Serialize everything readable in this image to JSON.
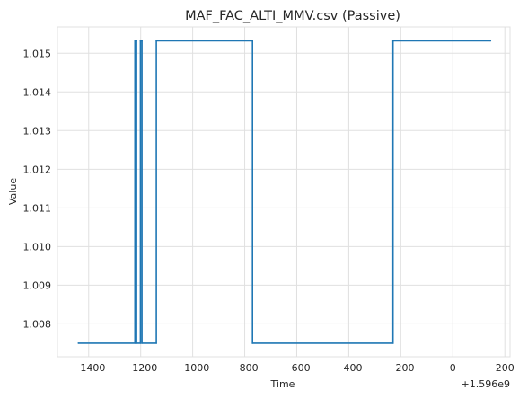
{
  "chart_data": {
    "type": "line",
    "title": "MAF_FAC_ALTI_MMV.csv (Passive)",
    "xlabel": "Time",
    "ylabel": "Value",
    "x_offset_label": "+1.596e9",
    "xlim": [
      -1520,
      220
    ],
    "ylim": [
      1.00715,
      1.01568
    ],
    "grid": true,
    "x_ticks": [
      -1400,
      -1200,
      -1000,
      -800,
      -600,
      -400,
      -200,
      0,
      200
    ],
    "x_tick_labels": [
      "−1400",
      "−1200",
      "−1000",
      "−800",
      "−600",
      "−400",
      "−200",
      "0",
      "200"
    ],
    "y_ticks": [
      1.008,
      1.009,
      1.01,
      1.011,
      1.012,
      1.013,
      1.014,
      1.015
    ],
    "y_tick_labels": [
      "1.008",
      "1.009",
      "1.010",
      "1.011",
      "1.012",
      "1.013",
      "1.014",
      "1.015"
    ],
    "series": [
      {
        "color": "#1f77b4",
        "x": [
          -1440,
          -1222,
          -1222,
          -1216,
          -1216,
          -1201,
          -1201,
          -1195,
          -1195,
          -1140,
          -1140,
          -770,
          -770,
          -230,
          -230,
          145
        ],
        "values": [
          1.0075,
          1.0075,
          1.01532,
          1.01532,
          1.0075,
          1.0075,
          1.01532,
          1.01532,
          1.0075,
          1.0075,
          1.01532,
          1.01532,
          1.0075,
          1.0075,
          1.01532,
          1.01532
        ]
      }
    ]
  }
}
